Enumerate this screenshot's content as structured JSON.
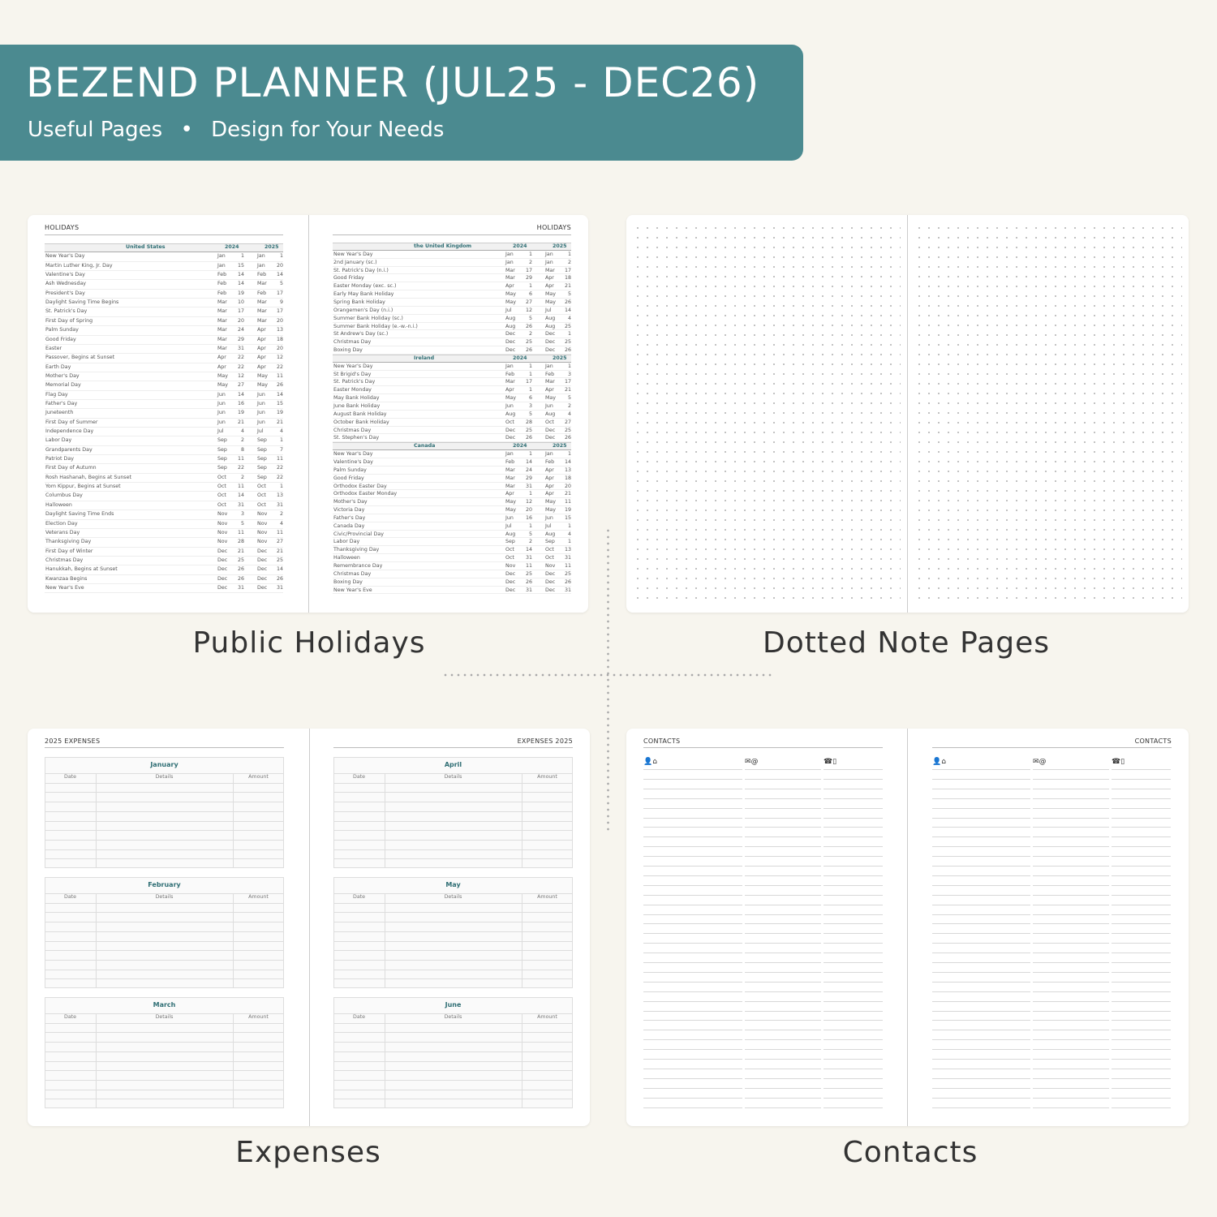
{
  "banner": {
    "title": "BEZEND PLANNER (JUL25 - DEC26)",
    "subtitle_left": "Useful Pages",
    "bullet": "•",
    "subtitle_right": "Design for Your Needs",
    "color": "#4b8a90"
  },
  "sections": {
    "holidays": "Public Holidays",
    "dotted": "Dotted Note Pages",
    "expenses": "Expenses",
    "contacts": "Contacts"
  },
  "holidays": {
    "left_header": "HOLIDAYS",
    "right_header": "HOLIDAYS",
    "left_tables": [
      {
        "country": "United States",
        "year1": "2024",
        "year2": "2025",
        "rows": [
          [
            "New Year's Day",
            "Jan",
            "1",
            "Jan",
            "1"
          ],
          [
            "Martin Luther King, Jr. Day",
            "Jan",
            "15",
            "Jan",
            "20"
          ],
          [
            "Valentine's Day",
            "Feb",
            "14",
            "Feb",
            "14"
          ],
          [
            "Ash Wednesday",
            "Feb",
            "14",
            "Mar",
            "5"
          ],
          [
            "President's Day",
            "Feb",
            "19",
            "Feb",
            "17"
          ],
          [
            "Daylight Saving Time Begins",
            "Mar",
            "10",
            "Mar",
            "9"
          ],
          [
            "St. Patrick's Day",
            "Mar",
            "17",
            "Mar",
            "17"
          ],
          [
            "First Day of Spring",
            "Mar",
            "20",
            "Mar",
            "20"
          ],
          [
            "Palm Sunday",
            "Mar",
            "24",
            "Apr",
            "13"
          ],
          [
            "Good Friday",
            "Mar",
            "29",
            "Apr",
            "18"
          ],
          [
            "Easter",
            "Mar",
            "31",
            "Apr",
            "20"
          ],
          [
            "Passover, Begins at Sunset",
            "Apr",
            "22",
            "Apr",
            "12"
          ],
          [
            "Earth Day",
            "Apr",
            "22",
            "Apr",
            "22"
          ],
          [
            "Mother's Day",
            "May",
            "12",
            "May",
            "11"
          ],
          [
            "Memorial Day",
            "May",
            "27",
            "May",
            "26"
          ],
          [
            "Flag Day",
            "Jun",
            "14",
            "Jun",
            "14"
          ],
          [
            "Father's Day",
            "Jun",
            "16",
            "Jun",
            "15"
          ],
          [
            "Juneteenth",
            "Jun",
            "19",
            "Jun",
            "19"
          ],
          [
            "First Day of Summer",
            "Jun",
            "21",
            "Jun",
            "21"
          ],
          [
            "Independence Day",
            "Jul",
            "4",
            "Jul",
            "4"
          ],
          [
            "Labor Day",
            "Sep",
            "2",
            "Sep",
            "1"
          ],
          [
            "Grandparents Day",
            "Sep",
            "8",
            "Sep",
            "7"
          ],
          [
            "Patriot Day",
            "Sep",
            "11",
            "Sep",
            "11"
          ],
          [
            "First Day of Autumn",
            "Sep",
            "22",
            "Sep",
            "22"
          ],
          [
            "Rosh Hashanah, Begins at Sunset",
            "Oct",
            "2",
            "Sep",
            "22"
          ],
          [
            "Yom Kippur, Begins at Sunset",
            "Oct",
            "11",
            "Oct",
            "1"
          ],
          [
            "Columbus Day",
            "Oct",
            "14",
            "Oct",
            "13"
          ],
          [
            "Halloween",
            "Oct",
            "31",
            "Oct",
            "31"
          ],
          [
            "Daylight Saving Time Ends",
            "Nov",
            "3",
            "Nov",
            "2"
          ],
          [
            "Election Day",
            "Nov",
            "5",
            "Nov",
            "4"
          ],
          [
            "Veterans Day",
            "Nov",
            "11",
            "Nov",
            "11"
          ],
          [
            "Thanksgiving Day",
            "Nov",
            "28",
            "Nov",
            "27"
          ],
          [
            "First Day of Winter",
            "Dec",
            "21",
            "Dec",
            "21"
          ],
          [
            "Christmas Day",
            "Dec",
            "25",
            "Dec",
            "25"
          ],
          [
            "Hanukkah, Begins at Sunset",
            "Dec",
            "26",
            "Dec",
            "14"
          ],
          [
            "Kwanzaa Begins",
            "Dec",
            "26",
            "Dec",
            "26"
          ],
          [
            "New Year's Eve",
            "Dec",
            "31",
            "Dec",
            "31"
          ]
        ]
      }
    ],
    "right_tables": [
      {
        "country": "the United Kingdom",
        "year1": "2024",
        "year2": "2025",
        "rows": [
          [
            "New Year's Day",
            "Jan",
            "1",
            "Jan",
            "1"
          ],
          [
            "2nd January (sc.)",
            "Jan",
            "2",
            "Jan",
            "2"
          ],
          [
            "St. Patrick's Day (n.i.)",
            "Mar",
            "17",
            "Mar",
            "17"
          ],
          [
            "Good Friday",
            "Mar",
            "29",
            "Apr",
            "18"
          ],
          [
            "Easter Monday (exc. sc.)",
            "Apr",
            "1",
            "Apr",
            "21"
          ],
          [
            "Early May Bank Holiday",
            "May",
            "6",
            "May",
            "5"
          ],
          [
            "Spring Bank Holiday",
            "May",
            "27",
            "May",
            "26"
          ],
          [
            "Orangemen's Day (n.i.)",
            "Jul",
            "12",
            "Jul",
            "14"
          ],
          [
            "Summer Bank Holiday (sc.)",
            "Aug",
            "5",
            "Aug",
            "4"
          ],
          [
            "Summer Bank Holiday (e.-w.-n.i.)",
            "Aug",
            "26",
            "Aug",
            "25"
          ],
          [
            "St Andrew's Day (sc.)",
            "Dec",
            "2",
            "Dec",
            "1"
          ],
          [
            "Christmas Day",
            "Dec",
            "25",
            "Dec",
            "25"
          ],
          [
            "Boxing Day",
            "Dec",
            "26",
            "Dec",
            "26"
          ]
        ]
      },
      {
        "country": "Ireland",
        "year1": "2024",
        "year2": "2025",
        "rows": [
          [
            "New Year's Day",
            "Jan",
            "1",
            "Jan",
            "1"
          ],
          [
            "St Brigid's Day",
            "Feb",
            "1",
            "Feb",
            "3"
          ],
          [
            "St. Patrick's Day",
            "Mar",
            "17",
            "Mar",
            "17"
          ],
          [
            "Easter Monday",
            "Apr",
            "1",
            "Apr",
            "21"
          ],
          [
            "May Bank Holiday",
            "May",
            "6",
            "May",
            "5"
          ],
          [
            "June Bank Holiday",
            "Jun",
            "3",
            "Jun",
            "2"
          ],
          [
            "August Bank Holiday",
            "Aug",
            "5",
            "Aug",
            "4"
          ],
          [
            "October Bank Holiday",
            "Oct",
            "28",
            "Oct",
            "27"
          ],
          [
            "Christmas Day",
            "Dec",
            "25",
            "Dec",
            "25"
          ],
          [
            "St. Stephen's Day",
            "Dec",
            "26",
            "Dec",
            "26"
          ]
        ]
      },
      {
        "country": "Canada",
        "year1": "2024",
        "year2": "2025",
        "rows": [
          [
            "New Year's Day",
            "Jan",
            "1",
            "Jan",
            "1"
          ],
          [
            "Valentine's Day",
            "Feb",
            "14",
            "Feb",
            "14"
          ],
          [
            "Palm Sunday",
            "Mar",
            "24",
            "Apr",
            "13"
          ],
          [
            "Good Friday",
            "Mar",
            "29",
            "Apr",
            "18"
          ],
          [
            "Orthodox Easter Day",
            "Mar",
            "31",
            "Apr",
            "20"
          ],
          [
            "Orthodox Easter Monday",
            "Apr",
            "1",
            "Apr",
            "21"
          ],
          [
            "Mother's Day",
            "May",
            "12",
            "May",
            "11"
          ],
          [
            "Victoria Day",
            "May",
            "20",
            "May",
            "19"
          ],
          [
            "Father's Day",
            "Jun",
            "16",
            "Jun",
            "15"
          ],
          [
            "Canada Day",
            "Jul",
            "1",
            "Jul",
            "1"
          ],
          [
            "Civic/Provincial Day",
            "Aug",
            "5",
            "Aug",
            "4"
          ],
          [
            "Labor Day",
            "Sep",
            "2",
            "Sep",
            "1"
          ],
          [
            "Thanksgiving Day",
            "Oct",
            "14",
            "Oct",
            "13"
          ],
          [
            "Halloween",
            "Oct",
            "31",
            "Oct",
            "31"
          ],
          [
            "Remembrance Day",
            "Nov",
            "11",
            "Nov",
            "11"
          ],
          [
            "Christmas Day",
            "Dec",
            "25",
            "Dec",
            "25"
          ],
          [
            "Boxing Day",
            "Dec",
            "26",
            "Dec",
            "26"
          ],
          [
            "New Year's Eve",
            "Dec",
            "31",
            "Dec",
            "31"
          ]
        ]
      }
    ]
  },
  "expenses": {
    "left_header": "2025 EXPENSES",
    "right_header": "EXPENSES 2025",
    "columns": [
      "Date",
      "Details",
      "Amount"
    ],
    "left_months": [
      "January",
      "February",
      "March"
    ],
    "right_months": [
      "April",
      "May",
      "June"
    ]
  },
  "contacts": {
    "left_header": "CONTACTS",
    "right_header": "CONTACTS",
    "col_icons": [
      "👤⌂",
      "✉@",
      "☎▯"
    ]
  }
}
